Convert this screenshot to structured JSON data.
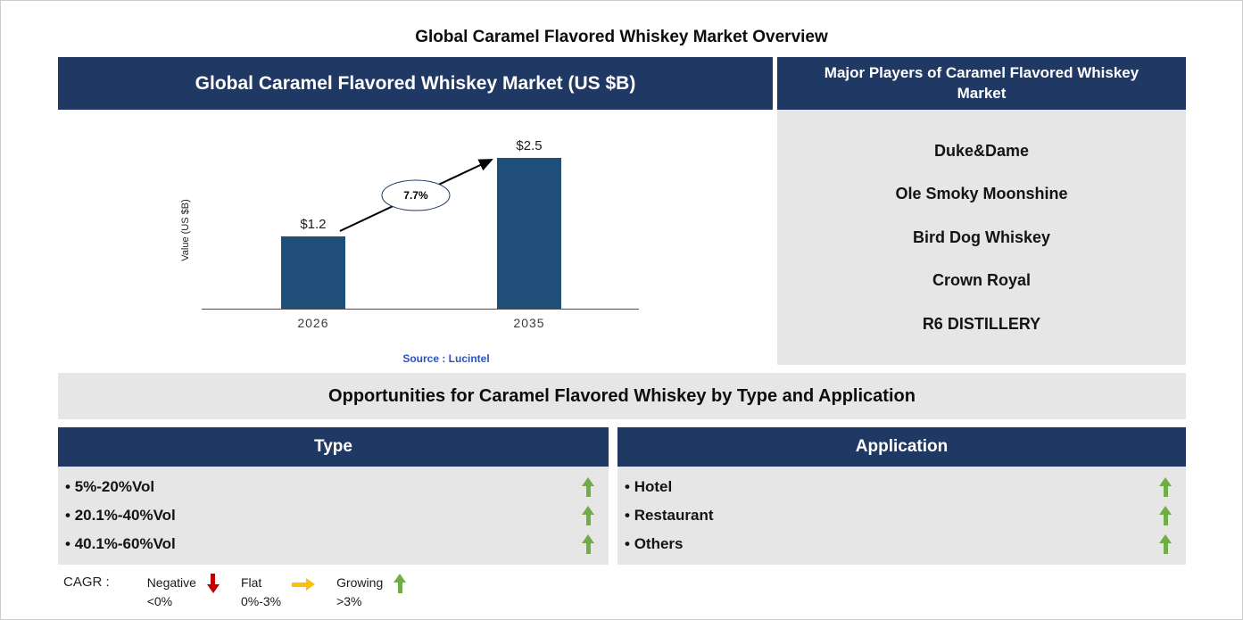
{
  "page_title": "Global Caramel Flavored Whiskey Market Overview",
  "chart_panel": {
    "header": "Global Caramel Flavored Whiskey Market (US $B)",
    "source": "Source : Lucintel"
  },
  "chart_data": {
    "type": "bar",
    "title": "Global Caramel Flavored Whiskey Market (US $B)",
    "categories": [
      "2026",
      "2035"
    ],
    "values": [
      1.2,
      2.5
    ],
    "value_labels": [
      "$1.2",
      "$2.5"
    ],
    "ylabel": "Value (US $B)",
    "annotation": "7.7%",
    "legend_position": "none",
    "grid": false
  },
  "major_players": {
    "header": "Major Players of Caramel Flavored Whiskey Market",
    "items": [
      "Duke&Dame",
      "Ole Smoky Moonshine",
      "Bird Dog Whiskey",
      "Crown Royal",
      "R6 DISTILLERY"
    ]
  },
  "opportunities": {
    "banner": "Opportunities for Caramel Flavored Whiskey by Type and Application",
    "type_table": {
      "header": "Type",
      "items": [
        {
          "label": "5%-20%Vol",
          "trend": "growing"
        },
        {
          "label": "20.1%-40%Vol",
          "trend": "growing"
        },
        {
          "label": "40.1%-60%Vol",
          "trend": "growing"
        }
      ]
    },
    "application_table": {
      "header": "Application",
      "items": [
        {
          "label": "Hotel",
          "trend": "growing"
        },
        {
          "label": "Restaurant",
          "trend": "growing"
        },
        {
          "label": "Others",
          "trend": "growing"
        }
      ]
    }
  },
  "legend": {
    "prefix": "CAGR :",
    "entries": [
      {
        "label": "Negative",
        "range": "<0%",
        "direction": "down"
      },
      {
        "label": "Flat",
        "range": "0%-3%",
        "direction": "right"
      },
      {
        "label": "Growing",
        "range": ">3%",
        "direction": "up"
      }
    ]
  },
  "colors": {
    "header_navy": "#1F3864",
    "bar_blue": "#1F4E79",
    "panel_gray": "#E6E6E6",
    "growing_green": "#70AD47",
    "negative_red": "#C00000",
    "flat_yellow": "#FFC000",
    "source_blue": "#2A52BE"
  }
}
